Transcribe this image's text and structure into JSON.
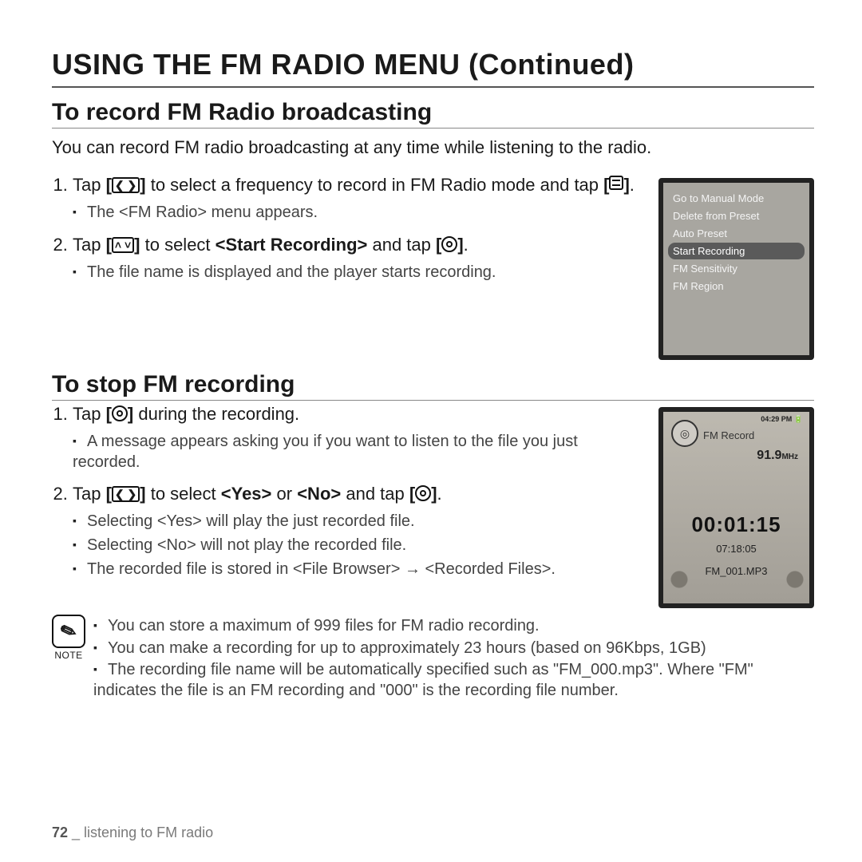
{
  "page_title": "USING THE FM RADIO MENU (Continued)",
  "section1": {
    "heading": "To record FM Radio broadcasting",
    "intro": "You can record FM radio broadcasting at any time while listening to the radio.",
    "step1_a": "Tap ",
    "step1_b": " to select a frequency to record in FM Radio mode and tap ",
    "step1_c": ".",
    "step1_sub": "The <FM Radio> menu appears.",
    "step2_a": "Tap ",
    "step2_b": " to select ",
    "step2_bold": "<Start Recording>",
    "step2_c": " and tap ",
    "step2_d": ".",
    "step2_sub": "The file name is displayed and the player starts recording."
  },
  "device1_menu": {
    "items": [
      "Go to Manual Mode",
      "Delete from Preset",
      "Auto Preset",
      "Start Recording",
      "FM Sensitivity",
      "FM Region"
    ],
    "selected_index": 3
  },
  "section2": {
    "heading": "To stop FM recording",
    "step1_a": "Tap ",
    "step1_b": " during the recording.",
    "step1_sub": "A message appears asking you if you want to listen to the file you just recorded.",
    "step2_a": "Tap ",
    "step2_b": " to select ",
    "step2_yes": "<Yes>",
    "step2_or": " or ",
    "step2_no": "<No>",
    "step2_c": " and tap ",
    "step2_d": ".",
    "step2_sub1": "Selecting <Yes> will play the just recorded file.",
    "step2_sub2": "Selecting <No> will not play the recorded file.",
    "step2_sub3": "The recorded file is stored in <File Browser> → <Recorded Files>."
  },
  "device2": {
    "status_time": "04:29 PM",
    "title": "FM Record",
    "frequency": "91.9",
    "freq_unit": "MHz",
    "timer": "00:01:15",
    "remaining": "07:18:05",
    "filename": "FM_001.MP3"
  },
  "notes": {
    "label": "NOTE",
    "n1": "You can store a maximum of 999 files for FM radio recording.",
    "n2": "You can make a recording for up to approximately 23 hours (based on 96Kbps, 1GB)",
    "n3": "The recording file name will be automatically specified such as \"FM_000.mp3\". Where \"FM\" indicates the file is an FM recording and \"000\" is the recording file number."
  },
  "footer": {
    "page": "72",
    "sep": " _ ",
    "chapter": "listening to FM radio"
  },
  "icons": {
    "lr": "❮  ❯",
    "ud": "˄ ˅"
  }
}
